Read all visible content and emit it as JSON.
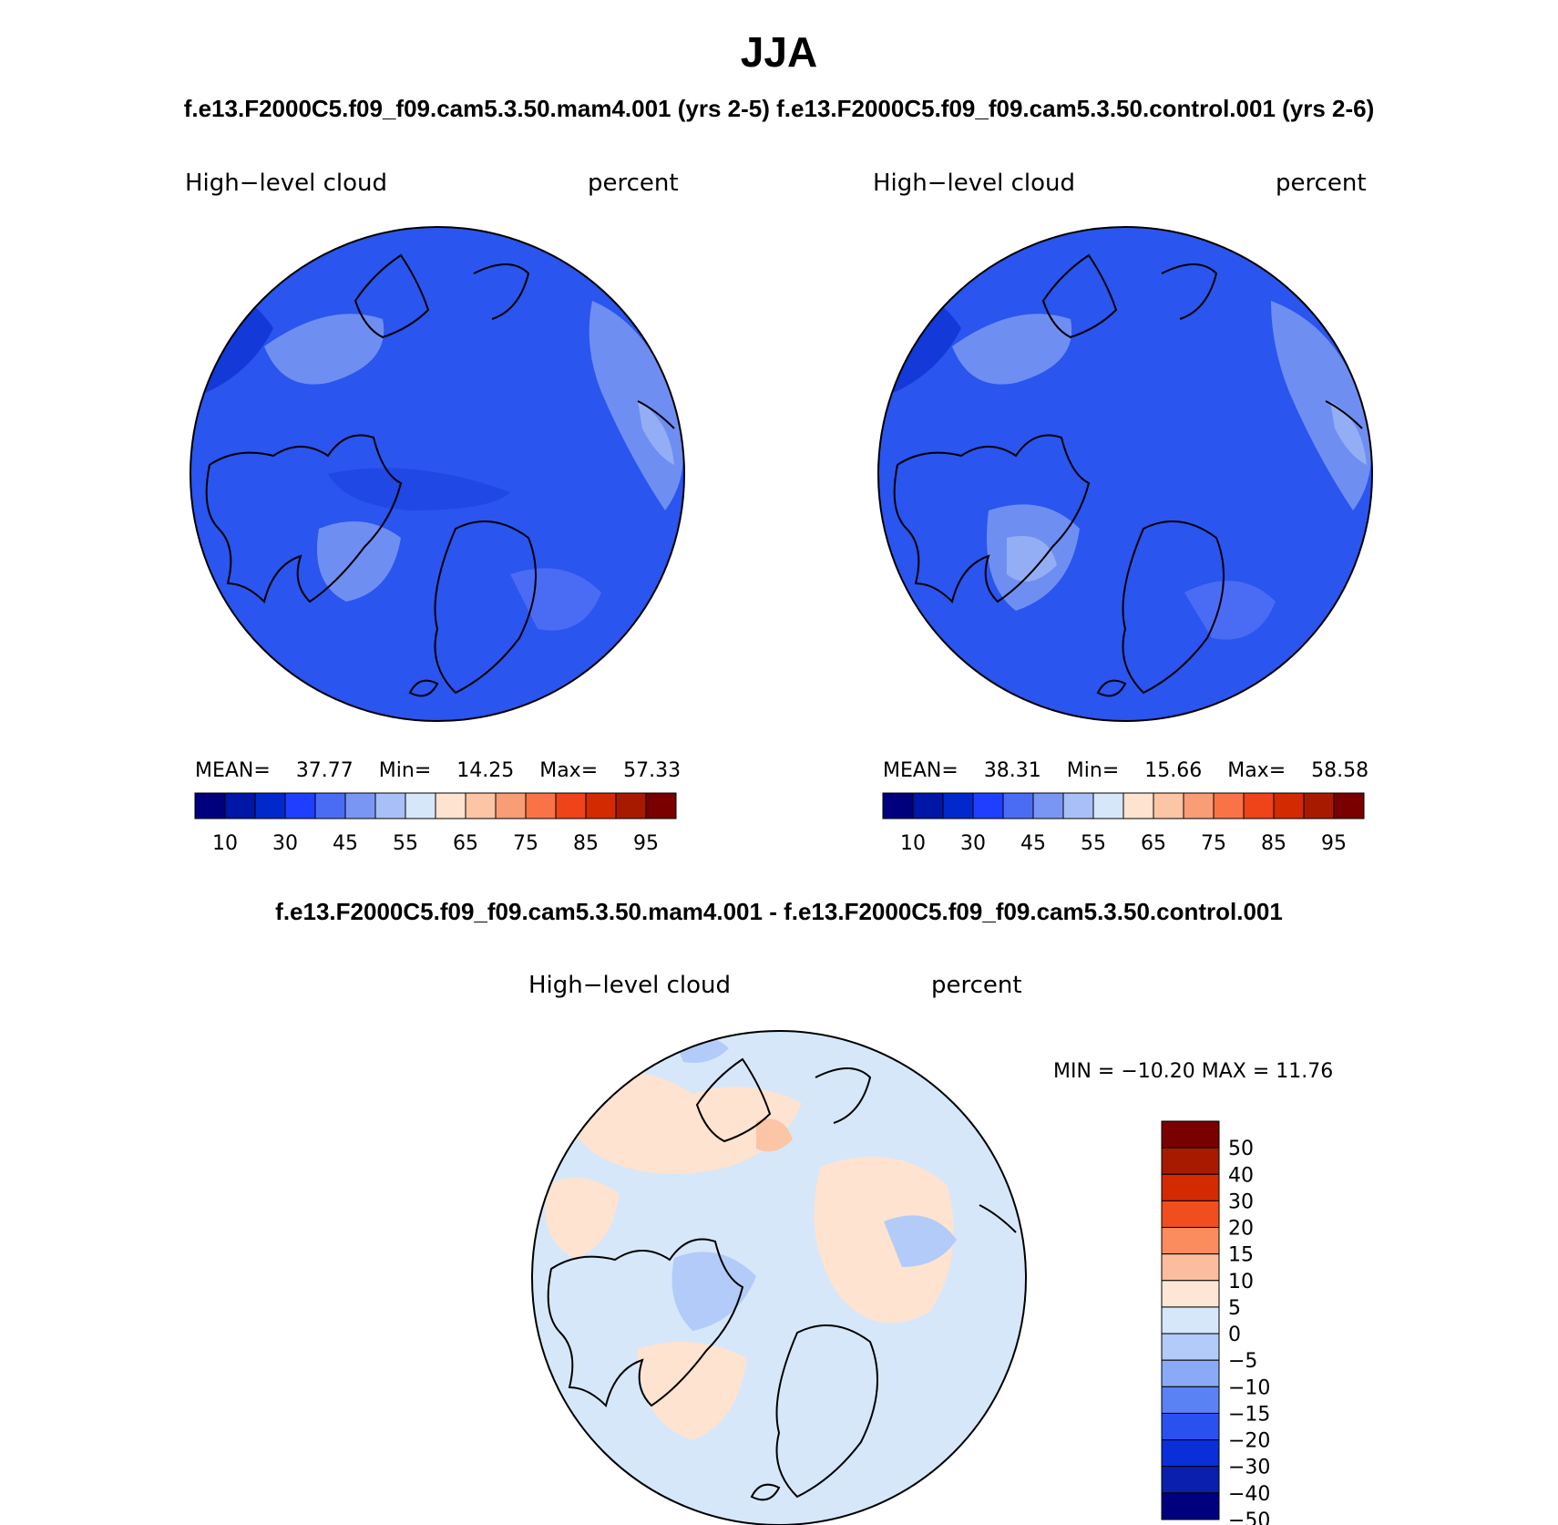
{
  "title": "JJA",
  "subtitle": {
    "left": "f.e13.F2000C5.f09_f09.cam5.3.50.mam4.001 (yrs 2-5)",
    "right": "f.e13.F2000C5.f09_f09.cam5.3.50.control.001 (yrs 2-6)"
  },
  "panels": [
    {
      "variable": "High−level cloud",
      "units": "percent",
      "stats": {
        "mean_label": "MEAN=",
        "mean": "37.77",
        "min_label": "Min=",
        "min": "14.25",
        "max_label": "Max=",
        "max": "57.33"
      }
    },
    {
      "variable": "High−level cloud",
      "units": "percent",
      "stats": {
        "mean_label": "MEAN=",
        "mean": "38.31",
        "min_label": "Min=",
        "min": "15.66",
        "max_label": "Max=",
        "max": "58.58"
      }
    }
  ],
  "diff": {
    "title": "f.e13.F2000C5.f09_f09.cam5.3.50.mam4.001 - f.e13.F2000C5.f09_f09.cam5.3.50.control.001",
    "variable": "High−level cloud",
    "units": "percent",
    "minmax": "MIN = −10.20 MAX =   11.76"
  },
  "colorbar_abs": {
    "colors": [
      "#00007f",
      "#0016a6",
      "#0028cc",
      "#1e3fff",
      "#4a6cf5",
      "#7a96f5",
      "#a9c0f7",
      "#d6e7fa",
      "#fde3d0",
      "#fbc5a6",
      "#f99d77",
      "#fa7346",
      "#ef4319",
      "#d22b02",
      "#a81a00",
      "#7a0000"
    ],
    "labels": [
      "10",
      "30",
      "45",
      "55",
      "65",
      "75",
      "85",
      "95"
    ]
  },
  "colorbar_diff": {
    "colors": [
      "#7a0000",
      "#a81a00",
      "#d22b02",
      "#f04e1e",
      "#fa8c5e",
      "#fbbd9e",
      "#fde6d6",
      "#d6e7fa",
      "#b2cbf8",
      "#8aaaf6",
      "#5a82f5",
      "#2a50f0",
      "#0a2fd9",
      "#0a1fae",
      "#00007f"
    ],
    "labels": [
      "50",
      "40",
      "30",
      "20",
      "15",
      "10",
      "5",
      "0",
      "−5",
      "−10",
      "−15",
      "−20",
      "−30",
      "−40",
      "−50"
    ]
  },
  "field_colors": {
    "panel_base": "#2a55ee",
    "panel_dark": "#1339d9",
    "panel_light": "#6f8ef2",
    "panel_lighter": "#93aef5",
    "diff_base": "#d6e7fa",
    "diff_pos": "#fde3d0",
    "diff_neg": "#b2cbf8",
    "coast": "#000000"
  }
}
